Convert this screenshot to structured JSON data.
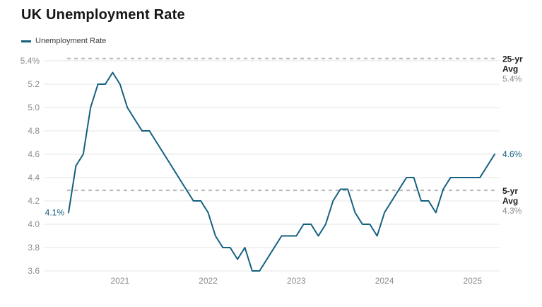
{
  "header": {
    "title": "UK Unemployment Rate"
  },
  "legend": {
    "label": "Unemployment Rate"
  },
  "chart_data": {
    "type": "line",
    "title": "UK Unemployment Rate",
    "series_name": "Unemployment Rate",
    "unit": "%",
    "xlabel": "",
    "ylabel": "",
    "ylim": [
      3.6,
      5.4
    ],
    "grid": true,
    "legend_position": "top-left",
    "y_ticks": [
      5.4,
      5.2,
      5.0,
      4.8,
      4.6,
      4.4,
      4.2,
      4.0,
      3.8,
      3.6
    ],
    "y_tick_labels": [
      "5.4%",
      "5.2",
      "5.0",
      "4.8",
      "4.6",
      "4.4",
      "4.2",
      "4.0",
      "3.8",
      "3.6"
    ],
    "x_tick_labels": [
      "2021",
      "2022",
      "2023",
      "2024",
      "2025"
    ],
    "months": [
      "Jun 2020",
      "Jul 2020",
      "Aug 2020",
      "Sep 2020",
      "Oct 2020",
      "Nov 2020",
      "Dec 2020",
      "Jan 2021",
      "Feb 2021",
      "Mar 2021",
      "Apr 2021",
      "May 2021",
      "Jun 2021",
      "Jul 2021",
      "Aug 2021",
      "Sep 2021",
      "Oct 2021",
      "Nov 2021",
      "Dec 2021",
      "Jan 2022",
      "Feb 2022",
      "Mar 2022",
      "Apr 2022",
      "May 2022",
      "Jun 2022",
      "Jul 2022",
      "Aug 2022",
      "Sep 2022",
      "Oct 2022",
      "Nov 2022",
      "Dec 2022",
      "Jan 2023",
      "Feb 2023",
      "Mar 2023",
      "Apr 2023",
      "May 2023",
      "Jun 2023",
      "Jul 2023",
      "Aug 2023",
      "Sep 2023",
      "Oct 2023",
      "Nov 2023",
      "Dec 2023",
      "Jan 2024",
      "Feb 2024",
      "Mar 2024",
      "Apr 2024",
      "May 2024",
      "Jun 2024",
      "Jul 2024",
      "Aug 2024",
      "Sep 2024",
      "Oct 2024",
      "Nov 2024",
      "Dec 2024",
      "Jan 2025",
      "Feb 2025",
      "Mar 2025",
      "Apr 2025"
    ],
    "values": [
      4.1,
      4.5,
      4.6,
      5.0,
      5.2,
      5.2,
      5.3,
      5.2,
      5.0,
      4.9,
      4.8,
      4.8,
      4.7,
      4.6,
      4.5,
      4.4,
      4.3,
      4.2,
      4.2,
      4.1,
      3.9,
      3.8,
      3.8,
      3.7,
      3.8,
      3.6,
      3.6,
      3.7,
      3.8,
      3.9,
      3.9,
      3.9,
      4.0,
      4.0,
      3.9,
      4.0,
      4.2,
      4.3,
      4.3,
      4.1,
      4.0,
      4.0,
      3.9,
      4.1,
      4.2,
      4.3,
      4.4,
      4.4,
      4.2,
      4.2,
      4.1,
      4.3,
      4.4,
      4.4,
      4.4,
      4.4,
      4.4,
      4.5,
      4.6
    ],
    "first_point_label": "4.1%",
    "last_point_label": "4.6%",
    "reference_lines": [
      {
        "name": "25-yr Avg",
        "label_lines": [
          "25-yr",
          "Avg"
        ],
        "value_label": "5.4%",
        "value": 5.42
      },
      {
        "name": "5-yr Avg",
        "label_lines": [
          "5-yr",
          "Avg"
        ],
        "value_label": "4.3%",
        "value": 4.29
      }
    ],
    "colors": {
      "series": "#14607f",
      "point_label": "#14607f",
      "gridline": "#e4e4e4",
      "reference_line": "#b8b8b8",
      "axis_text": "#8c8c8c",
      "annotation_bold": "#1c1c1c",
      "annotation_value": "#8c8c8c",
      "title": "#161616",
      "background": "#ffffff"
    }
  }
}
